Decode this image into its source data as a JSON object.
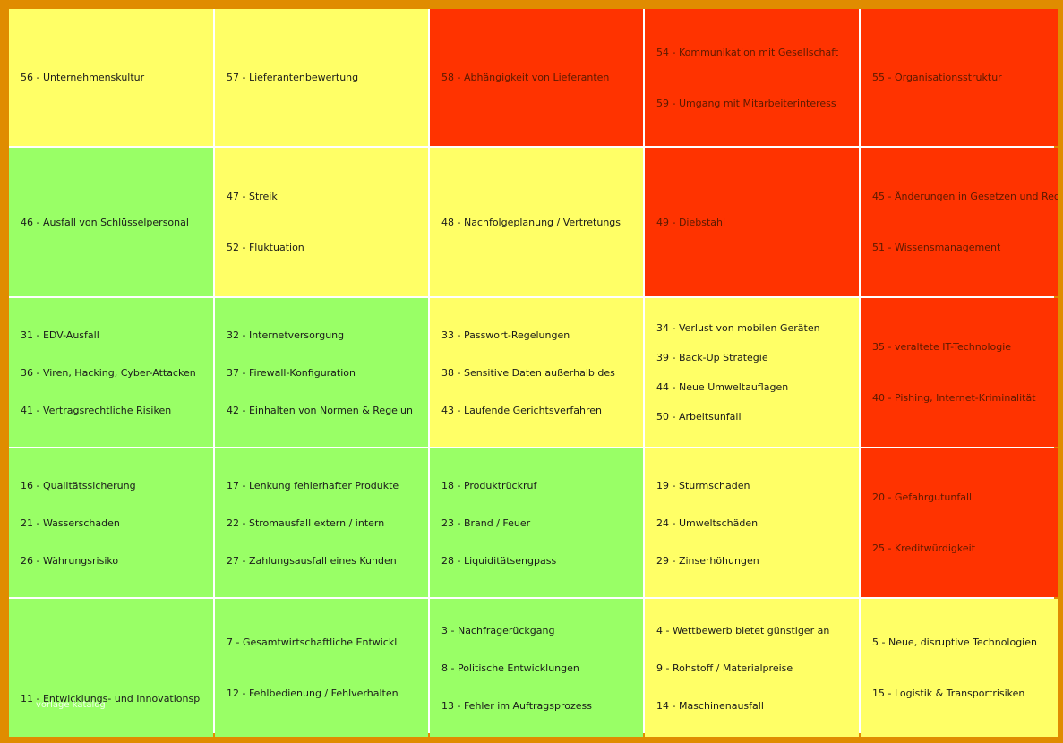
{
  "colors": {
    "frame": "#e08c00",
    "grid_lines": "#ffffff",
    "yellow": "#ffff66",
    "green": "#99ff66",
    "red": "#ff3300"
  },
  "watermark": "vorlage katalog",
  "rows": [
    [
      {
        "level": "yellow",
        "items": [
          "56 - Unternehmenskultur"
        ]
      },
      {
        "level": "yellow",
        "items": [
          "57 - Lieferantenbewertung"
        ]
      },
      {
        "level": "red",
        "items": [
          "58 - Abhängigkeit von Lieferanten"
        ]
      },
      {
        "level": "red",
        "items": [
          "54 - Kommunikation mit Gesellschaft",
          "59 - Umgang mit Mitarbeiterinteress"
        ]
      },
      {
        "level": "red",
        "items": [
          "55 - Organisationsstruktur"
        ]
      }
    ],
    [
      {
        "level": "green",
        "items": [
          "46 - Ausfall von Schlüsselpersonal"
        ]
      },
      {
        "level": "yellow",
        "items": [
          "47 - Streik",
          "52 - Fluktuation"
        ]
      },
      {
        "level": "yellow",
        "items": [
          "48 - Nachfolgeplanung / Vertretungs"
        ]
      },
      {
        "level": "red",
        "items": [
          "49 - Diebstahl"
        ]
      },
      {
        "level": "red",
        "items": [
          "45 - Änderungen in Gesetzen und Reg",
          "51 - Wissensmanagement"
        ]
      }
    ],
    [
      {
        "level": "green",
        "items": [
          "31 - EDV-Ausfall",
          "36 - Viren, Hacking, Cyber-Attacken",
          "41 - Vertragsrechtliche Risiken"
        ]
      },
      {
        "level": "green",
        "items": [
          "32 - Internetversorgung",
          "37 - Firewall-Konfiguration",
          "42 - Einhalten von Normen & Regelun"
        ]
      },
      {
        "level": "yellow",
        "items": [
          "33 - Passwort-Regelungen",
          "38 - Sensitive Daten außerhalb des",
          "43 - Laufende Gerichtsverfahren"
        ]
      },
      {
        "level": "yellow",
        "items": [
          "34 - Verlust von mobilen Geräten",
          "39 - Back-Up Strategie",
          "44 - Neue Umweltauflagen",
          "50 - Arbeitsunfall"
        ]
      },
      {
        "level": "red",
        "items": [
          "35 - veraltete IT-Technologie",
          "40 - Pishing, Internet-Kriminalität"
        ]
      }
    ],
    [
      {
        "level": "green",
        "items": [
          "16 - Qualitätssicherung",
          "21 - Wasserschaden",
          "26 - Währungsrisiko"
        ]
      },
      {
        "level": "green",
        "items": [
          "17 - Lenkung fehlerhafter Produkte",
          "22 - Stromausfall extern / intern",
          "27 - Zahlungsausfall eines Kunden"
        ]
      },
      {
        "level": "green",
        "items": [
          "18 - Produktrückruf",
          "23 - Brand / Feuer",
          "28 - Liquiditätsengpass"
        ]
      },
      {
        "level": "yellow",
        "items": [
          "19 - Sturmschaden",
          "24 - Umweltschäden",
          "29 - Zinserhöhungen"
        ]
      },
      {
        "level": "red",
        "items": [
          "20 - Gefahrgutunfall",
          "25 - Kreditwürdigkeit"
        ]
      }
    ],
    [
      {
        "level": "green",
        "items": [
          "11 - Entwicklungs- und Innovationsp"
        ]
      },
      {
        "level": "green",
        "items": [
          "7 - Gesamtwirtschaftliche Entwickl",
          "12 - Fehlbedienung / Fehlverhalten"
        ]
      },
      {
        "level": "green",
        "items": [
          "3 - Nachfragerückgang",
          "8 - Politische Entwicklungen",
          "13 - Fehler im Auftragsprozess"
        ]
      },
      {
        "level": "yellow",
        "items": [
          "4 - Wettbewerb bietet günstiger an",
          "9 - Rohstoff / Materialpreise",
          "14 - Maschinenausfall"
        ]
      },
      {
        "level": "yellow",
        "items": [
          "5 - Neue, disruptive Technologien",
          "15 - Logistik & Transportrisiken"
        ]
      }
    ]
  ]
}
